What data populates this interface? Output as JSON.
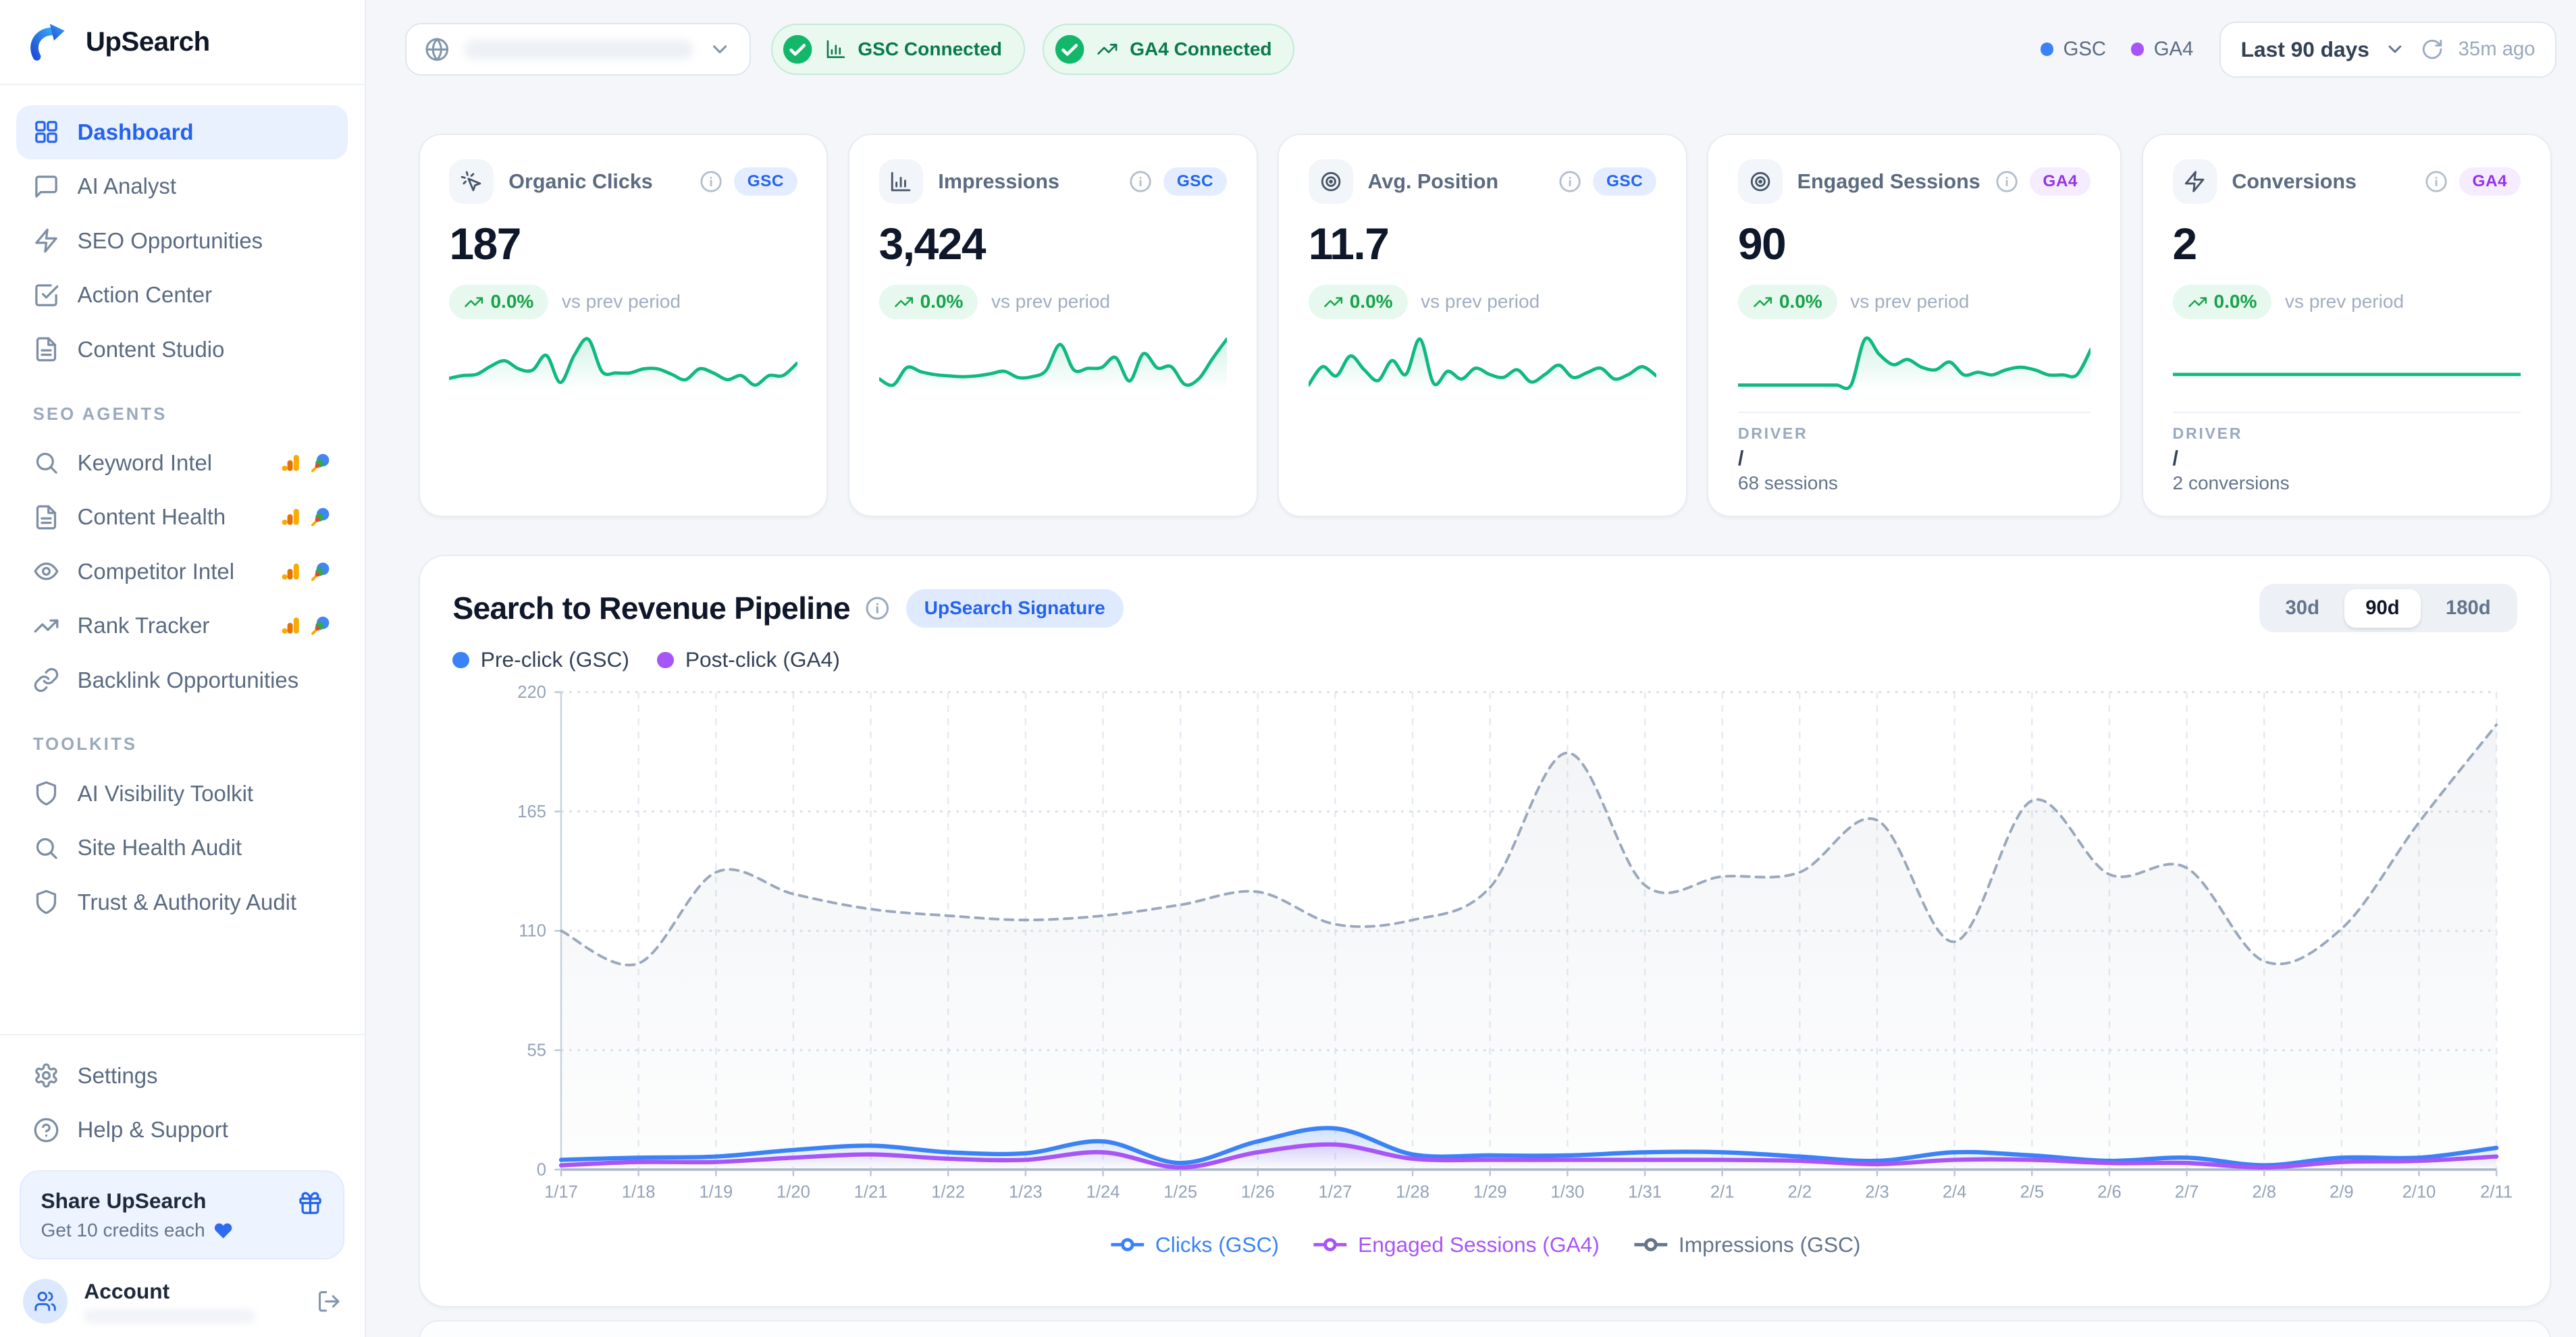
{
  "app": {
    "name": "UpSearch"
  },
  "sidebar": {
    "main": [
      {
        "label": "Dashboard",
        "icon": "layout-grid",
        "active": true
      },
      {
        "label": "AI Analyst",
        "icon": "message-square",
        "active": false
      },
      {
        "label": "SEO Opportunities",
        "icon": "zap",
        "active": false
      },
      {
        "label": "Action Center",
        "icon": "check-square",
        "active": false
      },
      {
        "label": "Content Studio",
        "icon": "file-text",
        "active": false
      }
    ],
    "sections": [
      {
        "label": "SEO AGENTS",
        "items": [
          {
            "label": "Keyword Intel",
            "icon": "search",
            "badges": true
          },
          {
            "label": "Content Health",
            "icon": "file-text",
            "badges": true
          },
          {
            "label": "Competitor Intel",
            "icon": "eye",
            "badges": true
          },
          {
            "label": "Rank Tracker",
            "icon": "trending-up",
            "badges": true
          },
          {
            "label": "Backlink Opportunities",
            "icon": "link",
            "badges": false
          }
        ]
      },
      {
        "label": "TOOLKITS",
        "items": [
          {
            "label": "AI Visibility Toolkit",
            "icon": "shield",
            "badges": false
          },
          {
            "label": "Site Health Audit",
            "icon": "search",
            "badges": false
          },
          {
            "label": "Trust & Authority Audit",
            "icon": "shield",
            "badges": false
          }
        ]
      }
    ],
    "footer": [
      {
        "label": "Settings",
        "icon": "settings"
      },
      {
        "label": "Help & Support",
        "icon": "help-circle"
      }
    ],
    "share": {
      "title": "Share UpSearch",
      "subtitle": "Get 10 credits each"
    },
    "account": {
      "label": "Account"
    }
  },
  "topbar": {
    "connections": [
      {
        "label": "GSC Connected",
        "icon": "bar-chart"
      },
      {
        "label": "GA4 Connected",
        "icon": "trending-up"
      }
    ],
    "source_legend": [
      {
        "label": "GSC",
        "color": "#3b82f6"
      },
      {
        "label": "GA4",
        "color": "#a855f7"
      }
    ],
    "date_range": {
      "label": "Last 90 days",
      "refreshed": "35m ago"
    }
  },
  "kpi_cards": [
    {
      "title": "Organic Clicks",
      "icon": "mouse-click",
      "source": "GSC",
      "value": "187",
      "change": "0.0%",
      "change_note": "vs prev period",
      "spark": [
        4.5,
        5.5,
        6,
        9,
        11,
        8,
        7.5,
        13,
        3,
        13,
        19,
        7,
        6.5,
        6.5,
        8,
        8,
        6,
        4,
        8,
        6.5,
        4,
        5.5,
        2,
        5.5,
        5.5,
        10
      ]
    },
    {
      "title": "Impressions",
      "icon": "bar-chart",
      "source": "GSC",
      "value": "3,424",
      "change": "0.0%",
      "change_note": "vs prev period",
      "spark": [
        110,
        95,
        137,
        127,
        120,
        117,
        115,
        117,
        122,
        128,
        113,
        115,
        130,
        192,
        131,
        135,
        137,
        161,
        105,
        170,
        136,
        139,
        96,
        111,
        160,
        205
      ]
    },
    {
      "title": "Avg. Position",
      "icon": "target",
      "source": "GSC",
      "value": "11.7",
      "change": "0.0%",
      "change_note": "vs prev period",
      "spark": [
        11.2,
        12.4,
        11.8,
        13.1,
        12.2,
        11.5,
        12.8,
        11.9,
        14.2,
        11.3,
        12.1,
        11.6,
        12.3,
        11.9,
        11.7,
        12.2,
        11.4,
        11.9,
        12.5,
        11.7,
        12.0,
        12.3,
        11.6,
        11.9,
        12.4,
        11.8
      ]
    },
    {
      "title": "Engaged Sessions",
      "icon": "target",
      "source": "GA4",
      "value": "90",
      "change": "0.0%",
      "change_note": "vs prev period",
      "spark": [
        0,
        0,
        0,
        0,
        0,
        0,
        0,
        0,
        0,
        9,
        6,
        4,
        5,
        3.5,
        3,
        4.5,
        2,
        2.5,
        2,
        3,
        3.5,
        3,
        2,
        2,
        2,
        7
      ],
      "driver": {
        "label": "DRIVER",
        "path": "/",
        "note": "68 sessions"
      }
    },
    {
      "title": "Conversions",
      "icon": "zap",
      "source": "GA4",
      "value": "2",
      "change": "0.0%",
      "change_note": "vs prev period",
      "spark": [
        0,
        0,
        0,
        0,
        0,
        0,
        0,
        0,
        0,
        0,
        0,
        0,
        0,
        0,
        0,
        0,
        0,
        0,
        0,
        0,
        0,
        0,
        0,
        0,
        0,
        0
      ],
      "driver": {
        "label": "DRIVER",
        "path": "/",
        "note": "2 conversions"
      }
    }
  ],
  "pipeline": {
    "title": "Search to Revenue Pipeline",
    "badge": "UpSearch Signature",
    "legend_top": [
      {
        "label": "Pre-click (GSC)",
        "color": "#3b82f6"
      },
      {
        "label": "Post-click (GA4)",
        "color": "#a855f7"
      }
    ],
    "ranges": [
      "30d",
      "90d",
      "180d"
    ],
    "active_range": "90d",
    "chart_data": {
      "type": "line",
      "x": [
        "1/17",
        "1/18",
        "1/19",
        "1/20",
        "1/21",
        "1/22",
        "1/23",
        "1/24",
        "1/25",
        "1/26",
        "1/27",
        "1/28",
        "1/29",
        "1/30",
        "1/31",
        "2/1",
        "2/2",
        "2/3",
        "2/4",
        "2/5",
        "2/6",
        "2/7",
        "2/8",
        "2/9",
        "2/10",
        "2/11"
      ],
      "ylim": [
        0,
        220
      ],
      "yticks": [
        0,
        55,
        110,
        165,
        220
      ],
      "grid": true,
      "legend_position": "bottom",
      "series": [
        {
          "name": "Clicks (GSC)",
          "color": "#3b82f6",
          "style": "solid",
          "values": [
            4.5,
            5.5,
            6,
            9,
            11,
            8,
            7.5,
            13,
            3,
            13,
            19,
            7,
            6.5,
            6.5,
            8,
            8,
            6,
            4,
            8,
            6.5,
            4,
            5.5,
            2,
            5.5,
            5.5,
            10
          ]
        },
        {
          "name": "Engaged Sessions (GA4)",
          "color": "#a855f7",
          "style": "solid",
          "values": [
            2,
            3.5,
            3.5,
            5.5,
            7,
            5,
            4.5,
            8,
            1,
            8,
            11.5,
            5,
            4.5,
            4.5,
            4.5,
            4.5,
            4,
            2.5,
            4.5,
            4.5,
            3,
            3,
            1,
            3.5,
            4,
            6
          ]
        },
        {
          "name": "Impressions (GSC)",
          "color": "#9aa8bc",
          "style": "dashed",
          "values": [
            110,
            95,
            137,
            127,
            120,
            117,
            115,
            117,
            122,
            128,
            113,
            115,
            130,
            192,
            131,
            135,
            137,
            161,
            105,
            170,
            136,
            139,
            96,
            111,
            160,
            205
          ]
        }
      ]
    }
  }
}
